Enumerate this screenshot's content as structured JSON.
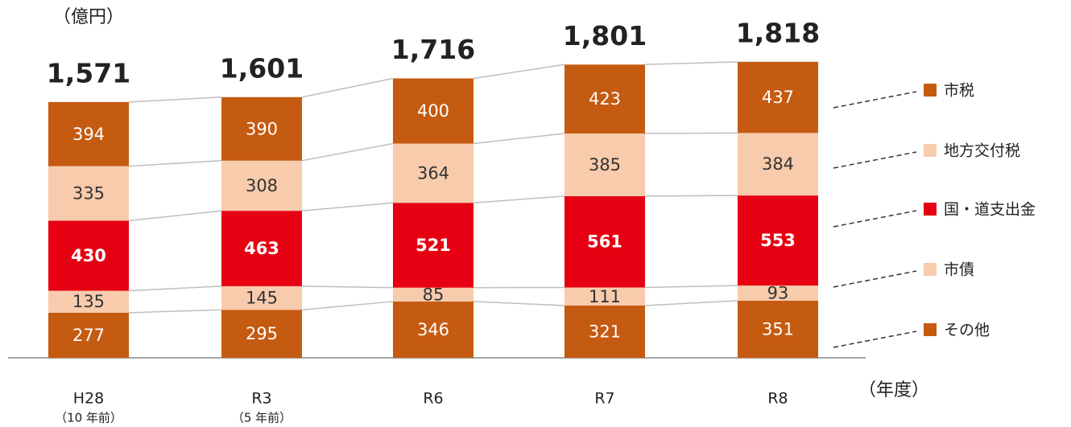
{
  "chart_data": {
    "type": "stacked_bar",
    "unit_label": "（億円）",
    "x_label": "（年度）",
    "categories": [
      "H28",
      "R3",
      "R6",
      "R7",
      "R8"
    ],
    "category_sublabels": [
      "（10 年前）",
      "（5 年前）",
      null,
      null,
      null
    ],
    "series": [
      {
        "name": "その他",
        "color": "#c55a11",
        "values": [
          277,
          295,
          346,
          321,
          351
        ]
      },
      {
        "name": "市債",
        "color": "#f8cbad",
        "values": [
          135,
          145,
          85,
          111,
          93
        ]
      },
      {
        "name": "国・道支出金",
        "color": "#e60012",
        "label_bold": true,
        "values": [
          430,
          463,
          521,
          561,
          553
        ]
      },
      {
        "name": "地方交付税",
        "color": "#f8cbad",
        "values": [
          335,
          308,
          364,
          385,
          384
        ]
      },
      {
        "name": "市税",
        "color": "#c55a11",
        "values": [
          394,
          390,
          400,
          423,
          437
        ]
      }
    ],
    "totals": [
      1571,
      1601,
      1716,
      1801,
      1818
    ],
    "total_labels": [
      "1,571",
      "1,601",
      "1,716",
      "1,801",
      "1,818"
    ],
    "ylim": [
      0,
      2000
    ]
  }
}
